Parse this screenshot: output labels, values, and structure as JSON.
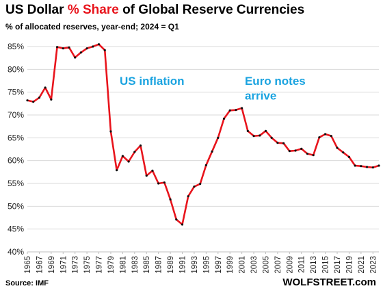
{
  "header": {
    "title_before": "US Dollar ",
    "title_highlight": "% Share",
    "title_after": " of Global Reserve Currencies",
    "subtitle": "% of allocated reserves, year-end; 2024 = Q1"
  },
  "footer": {
    "source": "Source: IMF",
    "brand": "WOLFSTREET.com"
  },
  "colors": {
    "line": "#e8141c",
    "marker": "#111111",
    "annotation": "#1aa3e0",
    "grid": "#d9d9d9",
    "highlight": "#e8141c"
  },
  "chart_data": {
    "type": "line",
    "title": "US Dollar % Share of Global Reserve Currencies",
    "subtitle": "% of allocated reserves, year-end; 2024 = Q1",
    "xlabel": "",
    "ylabel": "",
    "xlim": [
      1965,
      2024
    ],
    "ylim": [
      40,
      85
    ],
    "grid": true,
    "y_ticks": [
      "40%",
      "45%",
      "50%",
      "55%",
      "60%",
      "65%",
      "70%",
      "75%",
      "80%",
      "85%"
    ],
    "x_ticks": [
      "1965",
      "1967",
      "1969",
      "1971",
      "1973",
      "1975",
      "1977",
      "1979",
      "1981",
      "1983",
      "1985",
      "1987",
      "1989",
      "1991",
      "1993",
      "1995",
      "1997",
      "1999",
      "2001",
      "2003",
      "2005",
      "2007",
      "2009",
      "2011",
      "2013",
      "2015",
      "2017",
      "2019",
      "2021",
      "2023"
    ],
    "annotations": [
      {
        "text": "US inflation",
        "x": 1980.5,
        "y": 76.6
      },
      {
        "text": "Euro notes",
        "x": 2001.5,
        "y": 76.6
      },
      {
        "text": "arrive",
        "x": 2001.5,
        "y": 73.4
      }
    ],
    "x": [
      1965,
      1966,
      1967,
      1968,
      1969,
      1970,
      1971,
      1972,
      1973,
      1974,
      1975,
      1976,
      1977,
      1978,
      1979,
      1980,
      1981,
      1982,
      1983,
      1984,
      1985,
      1986,
      1987,
      1988,
      1989,
      1990,
      1991,
      1992,
      1993,
      1994,
      1995,
      1996,
      1997,
      1998,
      1999,
      2000,
      2001,
      2002,
      2003,
      2004,
      2005,
      2006,
      2007,
      2008,
      2009,
      2010,
      2011,
      2012,
      2013,
      2014,
      2015,
      2016,
      2017,
      2018,
      2019,
      2020,
      2021,
      2022,
      2023,
      2024
    ],
    "series": [
      {
        "values": [
          73.2,
          72.9,
          73.8,
          76.0,
          73.4,
          84.9,
          84.6,
          84.8,
          82.6,
          83.7,
          84.6,
          85.0,
          85.5,
          84.2,
          66.4,
          57.9,
          61.0,
          59.8,
          61.9,
          63.3,
          56.7,
          57.8,
          55.0,
          55.2,
          51.5,
          47.1,
          46.0,
          52.2,
          54.3,
          54.9,
          59.0,
          62.0,
          65.0,
          69.2,
          71.0,
          71.1,
          71.5,
          66.5,
          65.4,
          65.5,
          66.5,
          65.0,
          63.9,
          63.8,
          62.1,
          62.2,
          62.6,
          61.5,
          61.2,
          65.1,
          65.8,
          65.4,
          62.8,
          61.8,
          60.8,
          58.9,
          58.8,
          58.6,
          58.5,
          58.9
        ]
      }
    ]
  }
}
